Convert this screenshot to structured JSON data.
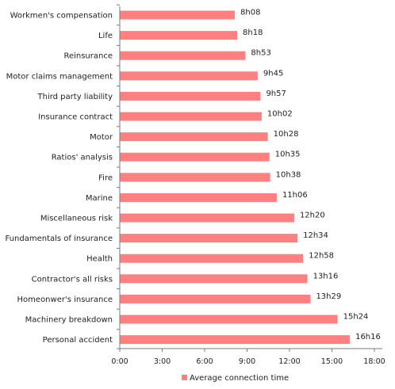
{
  "chart_data": {
    "type": "bar",
    "orientation": "horizontal",
    "categories": [
      "Workmen's compensation",
      "Life",
      "Reinsurance",
      "Motor claims management",
      "Third party liability",
      "Insurance contract",
      "Motor",
      "Ratios' analysis",
      "Fire",
      "Marine",
      "Miscellaneous risk",
      "Fundamentals of insurance",
      "Health",
      "Contractor's all risks",
      "Homeonwer's insurance",
      "Machinery breakdown",
      "Personal accident"
    ],
    "series": [
      {
        "name": "Average connection time",
        "values_minutes": [
          488,
          498,
          533,
          585,
          597,
          602,
          628,
          635,
          638,
          666,
          740,
          754,
          778,
          796,
          809,
          924,
          976
        ],
        "value_labels": [
          "8h08",
          "8h18",
          "8h53",
          "9h45",
          "9h57",
          "10h02",
          "10h28",
          "10h35",
          "10h38",
          "11h06",
          "12h20",
          "12h34",
          "12h58",
          "13h16",
          "13h29",
          "15h24",
          "16h16"
        ],
        "color": "#ff8080"
      }
    ],
    "x_axis": {
      "ticks": [
        "0:00",
        "3:00",
        "6:00",
        "9:00",
        "12:00",
        "15:00",
        "18:00"
      ],
      "range_minutes": [
        0,
        1080
      ]
    },
    "grid": false,
    "legend": {
      "position": "bottom",
      "items": [
        "Average connection time"
      ]
    }
  }
}
